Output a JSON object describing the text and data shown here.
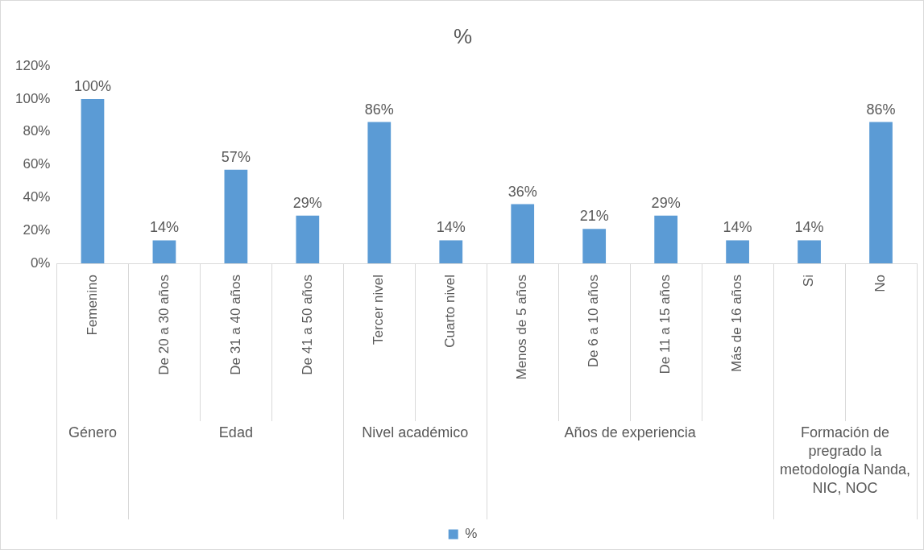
{
  "chart_data": {
    "type": "bar",
    "title": "%",
    "categories": [
      "Femenino",
      "De 20 a 30 años",
      "De 31 a 40 años",
      "De 41 a 50 años",
      "Tercer nivel",
      "Cuarto nivel",
      "Menos de 5 años",
      "De 6 a 10 años",
      "De 11 a 15 años",
      "Más de 16 años",
      "Si",
      "No"
    ],
    "series": [
      {
        "name": "%",
        "color": "#5b9bd5",
        "values": [
          100,
          14,
          57,
          29,
          86,
          14,
          36,
          21,
          29,
          14,
          14,
          86
        ],
        "value_labels": [
          "100%",
          "14%",
          "57%",
          "29%",
          "86%",
          "14%",
          "36%",
          "21%",
          "29%",
          "14%",
          "14%",
          "86%"
        ]
      }
    ],
    "ylim": [
      0,
      120
    ],
    "yticks": [
      {
        "value": 0,
        "label": "0%"
      },
      {
        "value": 20,
        "label": "20%"
      },
      {
        "value": 40,
        "label": "40%"
      },
      {
        "value": 60,
        "label": "60%"
      },
      {
        "value": 80,
        "label": "80%"
      },
      {
        "value": 100,
        "label": "100%"
      },
      {
        "value": 120,
        "label": "120%"
      }
    ],
    "annotations": [
      "Género",
      "Edad",
      "Nivel académico",
      "Años de experiencia",
      "Formación de pregrado la metodología Nanda, NIC, NOC"
    ],
    "grid": false,
    "legend": "bottom"
  }
}
